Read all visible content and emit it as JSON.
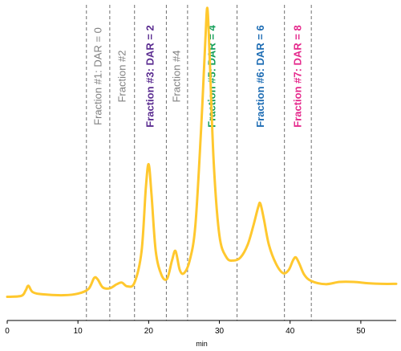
{
  "chart_data": {
    "type": "line",
    "xlabel": "min",
    "ylabel": "",
    "xlim": [
      0,
      55
    ],
    "ylim": [
      0,
      100
    ],
    "xticks": [
      "0",
      "10",
      "20",
      "30",
      "40",
      "50"
    ],
    "grid": false,
    "trace_color": "#FFC82E",
    "series": [
      {
        "x": [
          0,
          2,
          2.6,
          3.0,
          3.6,
          5,
          8,
          10,
          11.5,
          12.3,
          12.8,
          13.5,
          14.5,
          15.5,
          16.2,
          17,
          18,
          19,
          19.6,
          20.0,
          20.4,
          21,
          21.8,
          22.6,
          23.3,
          23.8,
          24.4,
          25,
          25.8,
          26.6,
          27.4,
          28.0,
          28.3,
          28.6,
          29.2,
          30,
          31,
          32,
          33,
          34,
          34.8,
          35.5,
          35.8,
          36.3,
          37,
          38,
          39,
          39.8,
          40.4,
          40.8,
          41.3,
          42,
          43,
          45,
          47,
          49,
          51,
          53,
          55
        ],
        "y": [
          7.5,
          7.8,
          9.5,
          11,
          9,
          8.3,
          8.0,
          8.5,
          10,
          13.5,
          13,
          10.5,
          10.2,
          11.5,
          12,
          10.8,
          12,
          22,
          42,
          49.5,
          40,
          22,
          14.5,
          13.2,
          19,
          22,
          16,
          15,
          19,
          30,
          60,
          88,
          99,
          85,
          50,
          27,
          20,
          19,
          20,
          24,
          30,
          36,
          37,
          32,
          24,
          18,
          15,
          16,
          19,
          20,
          18,
          14.5,
          12.5,
          11.5,
          12.2,
          12.2,
          11.8,
          11.6,
          11.6
        ]
      }
    ],
    "fractions": {
      "boundaries": [
        11.2,
        14.5,
        18.0,
        22.5,
        25.5,
        32.5,
        39.2,
        43.0
      ],
      "labels": [
        {
          "text": "Fraction #1: DAR = 0",
          "center": 12.85,
          "color": "#808080",
          "bold": false
        },
        {
          "text": "Fraction #2",
          "center": 16.25,
          "color": "#808080",
          "bold": false
        },
        {
          "text": "Fraction #3: DAR = 2",
          "center": 20.25,
          "color": "#5B2D91",
          "bold": true
        },
        {
          "text": "Fraction #4",
          "center": 24.0,
          "color": "#808080",
          "bold": false
        },
        {
          "text": "Fraction #5: DAR = 4",
          "center": 29.0,
          "color": "#129E5A",
          "bold": true
        },
        {
          "text": "Fraction #6: DAR = 6",
          "center": 35.85,
          "color": "#1E6DB4",
          "bold": true
        },
        {
          "text": "Fraction #7: DAR = 8",
          "center": 41.1,
          "color": "#E5288C",
          "bold": true
        }
      ]
    }
  }
}
